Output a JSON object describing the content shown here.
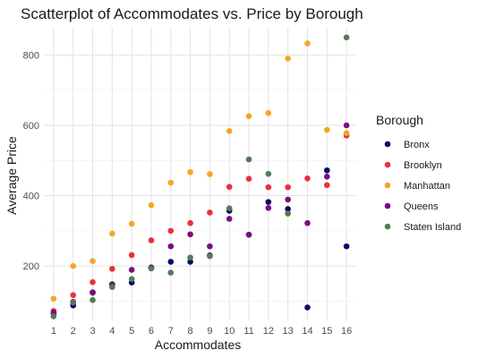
{
  "chart_data": {
    "type": "scatter",
    "title": "Scatterplot of Accommodates vs. Price by Borough",
    "xlabel": "Accommodates",
    "ylabel": "Average Price",
    "xlim": [
      0.5,
      16.5
    ],
    "ylim": [
      45,
      880
    ],
    "x_ticks": [
      1,
      2,
      3,
      4,
      5,
      6,
      7,
      8,
      9,
      10,
      11,
      12,
      13,
      14,
      15,
      16
    ],
    "y_ticks": [
      200,
      400,
      600,
      800
    ],
    "grid": true,
    "legend": {
      "title": "Borough",
      "position": "right"
    },
    "series": [
      {
        "name": "Bronx",
        "color": "#0a0a6b",
        "points": [
          [
            1,
            65
          ],
          [
            2,
            88
          ],
          [
            3,
            125
          ],
          [
            4,
            148
          ],
          [
            5,
            153
          ],
          [
            6,
            196
          ],
          [
            7,
            212
          ],
          [
            8,
            212
          ],
          [
            9,
            230
          ],
          [
            10,
            357
          ],
          [
            11,
            289
          ],
          [
            12,
            382
          ],
          [
            13,
            362
          ],
          [
            14,
            82
          ],
          [
            15,
            472
          ],
          [
            16,
            256
          ]
        ]
      },
      {
        "name": "Brooklyn",
        "color": "#e8303c",
        "points": [
          [
            1,
            72
          ],
          [
            2,
            117
          ],
          [
            3,
            154
          ],
          [
            4,
            192
          ],
          [
            5,
            231
          ],
          [
            6,
            273
          ],
          [
            7,
            300
          ],
          [
            8,
            322
          ],
          [
            9,
            352
          ],
          [
            10,
            425
          ],
          [
            11,
            448
          ],
          [
            12,
            424
          ],
          [
            13,
            424
          ],
          [
            14,
            449
          ],
          [
            15,
            430
          ],
          [
            16,
            571
          ]
        ]
      },
      {
        "name": "Manhattan",
        "color": "#f5a623",
        "points": [
          [
            1,
            107
          ],
          [
            2,
            200
          ],
          [
            3,
            214
          ],
          [
            4,
            292
          ],
          [
            5,
            320
          ],
          [
            6,
            373
          ],
          [
            7,
            437
          ],
          [
            8,
            467
          ],
          [
            9,
            461
          ],
          [
            10,
            584
          ],
          [
            11,
            626
          ],
          [
            12,
            635
          ],
          [
            13,
            790
          ],
          [
            14,
            833
          ],
          [
            15,
            587
          ],
          [
            16,
            578
          ]
        ]
      },
      {
        "name": "Queens",
        "color": "#7b0d82",
        "points": [
          [
            1,
            68
          ],
          [
            2,
            98
          ],
          [
            3,
            124
          ],
          [
            4,
            146
          ],
          [
            5,
            189
          ],
          [
            6,
            195
          ],
          [
            7,
            256
          ],
          [
            8,
            290
          ],
          [
            9,
            256
          ],
          [
            10,
            334
          ],
          [
            11,
            289
          ],
          [
            12,
            365
          ],
          [
            13,
            389
          ],
          [
            14,
            322
          ],
          [
            15,
            454
          ],
          [
            16,
            600
          ]
        ]
      },
      {
        "name": "Staten Island",
        "color": "#557a55",
        "points": [
          [
            1,
            57
          ],
          [
            2,
            96
          ],
          [
            3,
            103
          ],
          [
            4,
            140
          ],
          [
            5,
            163
          ],
          [
            6,
            193
          ],
          [
            7,
            181
          ],
          [
            8,
            224
          ],
          [
            9,
            228
          ],
          [
            10,
            364
          ],
          [
            11,
            503
          ],
          [
            12,
            462
          ],
          [
            13,
            349
          ],
          [
            16,
            850
          ]
        ]
      }
    ]
  }
}
